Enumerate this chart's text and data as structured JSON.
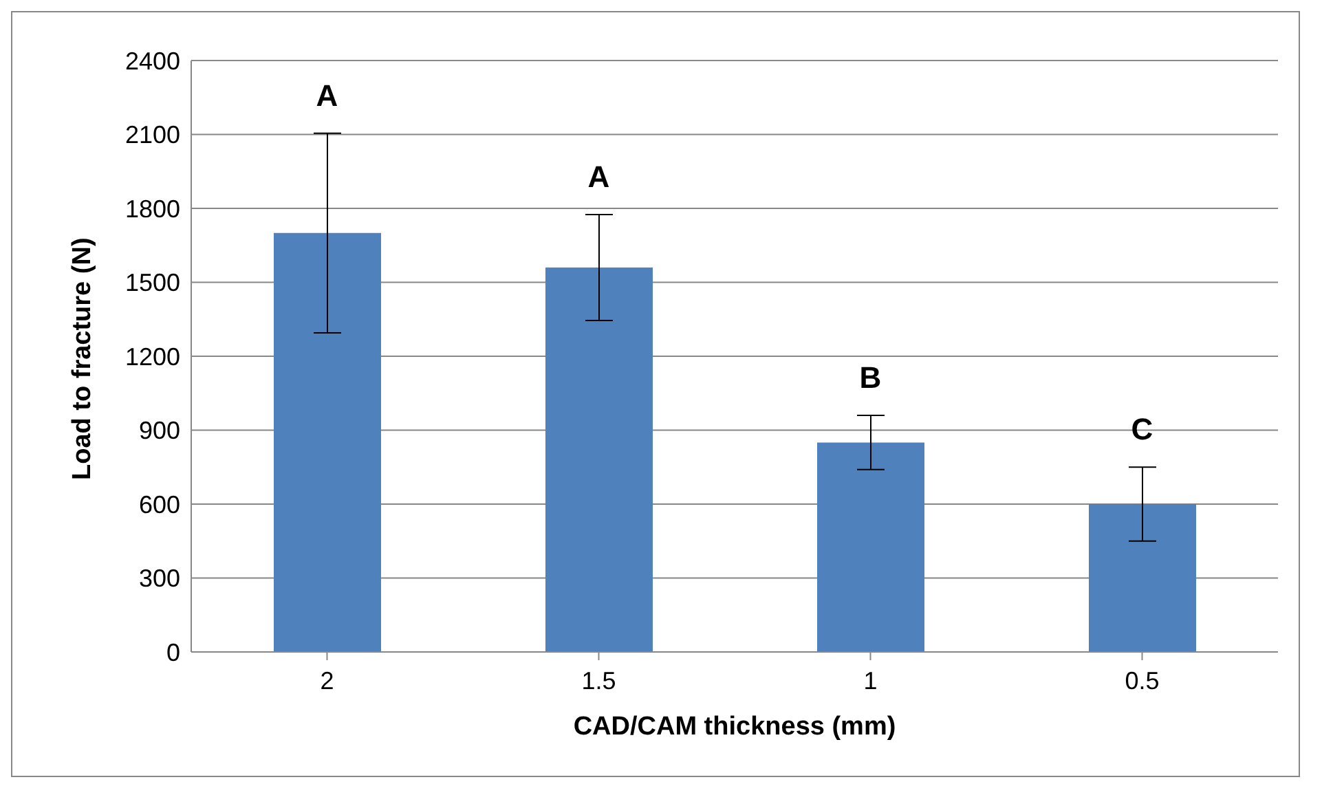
{
  "chart_data": {
    "type": "bar",
    "xlabel": "CAD/CAM thickness (mm)",
    "ylabel": "Load to fracture (N)",
    "categories": [
      "2",
      "1.5",
      "1",
      "0.5"
    ],
    "values": [
      1700,
      1560,
      850,
      600
    ],
    "errors": [
      405,
      215,
      110,
      150
    ],
    "color": "#4f81bd",
    "ylim": [
      0,
      2400
    ],
    "yticks": [
      0,
      300,
      600,
      900,
      1200,
      1500,
      1800,
      2100,
      2400
    ],
    "grid": "y",
    "annotations": [
      "A",
      "A",
      "B",
      "C"
    ]
  }
}
